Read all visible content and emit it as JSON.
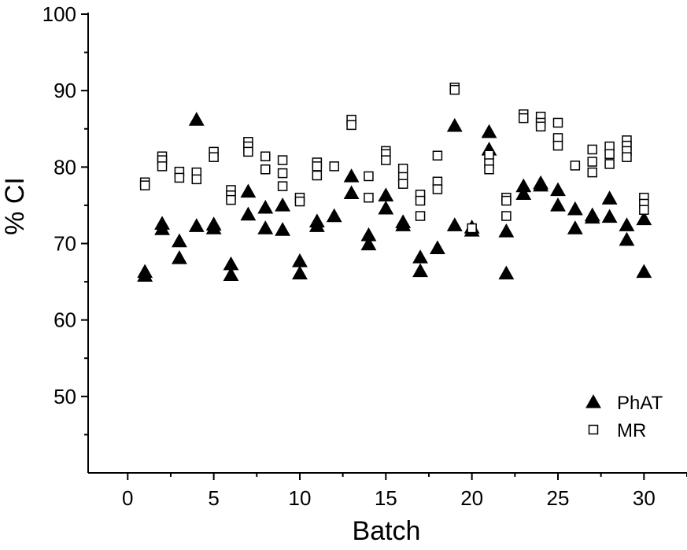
{
  "chart_data": {
    "type": "scatter",
    "xlabel": "Batch",
    "ylabel": "% CI",
    "xlim": [
      -2.3,
      32.5
    ],
    "ylim": [
      40,
      100
    ],
    "x_ticks": [
      0,
      5,
      10,
      15,
      20,
      25,
      30
    ],
    "y_ticks": [
      50,
      60,
      70,
      80,
      90,
      100
    ],
    "grid": false,
    "legend_position": "bottom-right",
    "series": [
      {
        "name": "PhAT",
        "marker": "filled-triangle",
        "color": "#000000",
        "points": [
          [
            1,
            66.3
          ],
          [
            1,
            65.8
          ],
          [
            2,
            72.6
          ],
          [
            2,
            71.9
          ],
          [
            3,
            70.3
          ],
          [
            3,
            68.1
          ],
          [
            4,
            86.2
          ],
          [
            4,
            72.3
          ],
          [
            5,
            72.5
          ],
          [
            5,
            72.0
          ],
          [
            6,
            67.3
          ],
          [
            6,
            65.9
          ],
          [
            7,
            76.8
          ],
          [
            7,
            73.8
          ],
          [
            8,
            74.7
          ],
          [
            8,
            72.0
          ],
          [
            9,
            75.0
          ],
          [
            9,
            71.8
          ],
          [
            10,
            67.7
          ],
          [
            10,
            66.1
          ],
          [
            11,
            72.9
          ],
          [
            11,
            72.3
          ],
          [
            12,
            73.6
          ],
          [
            13,
            78.8
          ],
          [
            13,
            76.6
          ],
          [
            14,
            71.1
          ],
          [
            14,
            69.9
          ],
          [
            15,
            76.3
          ],
          [
            15,
            74.6
          ],
          [
            16,
            72.8
          ],
          [
            16,
            72.4
          ],
          [
            17,
            68.2
          ],
          [
            17,
            66.4
          ],
          [
            18,
            69.4
          ],
          [
            19,
            85.4
          ],
          [
            19,
            72.4
          ],
          [
            20,
            72.1
          ],
          [
            20,
            71.7
          ],
          [
            21,
            84.6
          ],
          [
            21,
            82.3
          ],
          [
            22,
            71.6
          ],
          [
            22,
            66.1
          ],
          [
            23,
            77.5
          ],
          [
            23,
            76.5
          ],
          [
            24,
            77.9
          ],
          [
            24,
            77.6
          ],
          [
            25,
            77.0
          ],
          [
            25,
            75.0
          ],
          [
            26,
            74.5
          ],
          [
            26,
            72.0
          ],
          [
            27,
            73.7
          ],
          [
            27,
            73.4
          ],
          [
            28,
            75.9
          ],
          [
            28,
            73.5
          ],
          [
            29,
            72.4
          ],
          [
            29,
            70.5
          ],
          [
            30,
            73.2
          ],
          [
            30,
            66.3
          ]
        ]
      },
      {
        "name": "MR",
        "marker": "open-square",
        "color": "#000000",
        "points": [
          [
            1,
            78.0
          ],
          [
            1,
            77.6
          ],
          [
            2,
            81.4
          ],
          [
            2,
            80.9
          ],
          [
            2,
            80.1
          ],
          [
            3,
            79.4
          ],
          [
            3,
            78.6
          ],
          [
            4,
            79.3
          ],
          [
            4,
            78.4
          ],
          [
            5,
            82.0
          ],
          [
            5,
            81.3
          ],
          [
            6,
            77.0
          ],
          [
            6,
            76.3
          ],
          [
            6,
            75.7
          ],
          [
            7,
            83.3
          ],
          [
            7,
            82.7
          ],
          [
            7,
            82.0
          ],
          [
            8,
            81.4
          ],
          [
            8,
            79.7
          ],
          [
            9,
            80.9
          ],
          [
            9,
            79.2
          ],
          [
            9,
            77.5
          ],
          [
            10,
            76.0
          ],
          [
            10,
            75.5
          ],
          [
            11,
            80.6
          ],
          [
            11,
            80.1
          ],
          [
            11,
            78.9
          ],
          [
            12,
            80.1
          ],
          [
            13,
            86.2
          ],
          [
            13,
            85.5
          ],
          [
            14,
            78.8
          ],
          [
            14,
            76.0
          ],
          [
            15,
            82.1
          ],
          [
            15,
            81.7
          ],
          [
            15,
            80.9
          ],
          [
            16,
            79.8
          ],
          [
            16,
            78.7
          ],
          [
            16,
            77.8
          ],
          [
            17,
            76.4
          ],
          [
            17,
            75.6
          ],
          [
            17,
            73.6
          ],
          [
            18,
            81.5
          ],
          [
            18,
            78.1
          ],
          [
            18,
            77.1
          ],
          [
            19,
            90.4
          ],
          [
            19,
            90.1
          ],
          [
            20,
            72.0
          ],
          [
            21,
            81.6
          ],
          [
            21,
            80.5
          ],
          [
            21,
            79.7
          ],
          [
            22,
            76.0
          ],
          [
            22,
            75.6
          ],
          [
            22,
            73.6
          ],
          [
            23,
            86.9
          ],
          [
            23,
            86.4
          ],
          [
            24,
            86.6
          ],
          [
            24,
            85.8
          ],
          [
            24,
            85.3
          ],
          [
            25,
            85.8
          ],
          [
            25,
            83.8
          ],
          [
            25,
            82.8
          ],
          [
            26,
            80.2
          ],
          [
            27,
            82.3
          ],
          [
            27,
            80.7
          ],
          [
            27,
            79.3
          ],
          [
            28,
            82.7
          ],
          [
            28,
            81.7
          ],
          [
            28,
            80.4
          ],
          [
            29,
            83.5
          ],
          [
            29,
            82.8
          ],
          [
            29,
            82.1
          ],
          [
            29,
            81.3
          ],
          [
            30,
            76.0
          ],
          [
            30,
            75.2
          ],
          [
            30,
            74.4
          ]
        ]
      }
    ]
  }
}
